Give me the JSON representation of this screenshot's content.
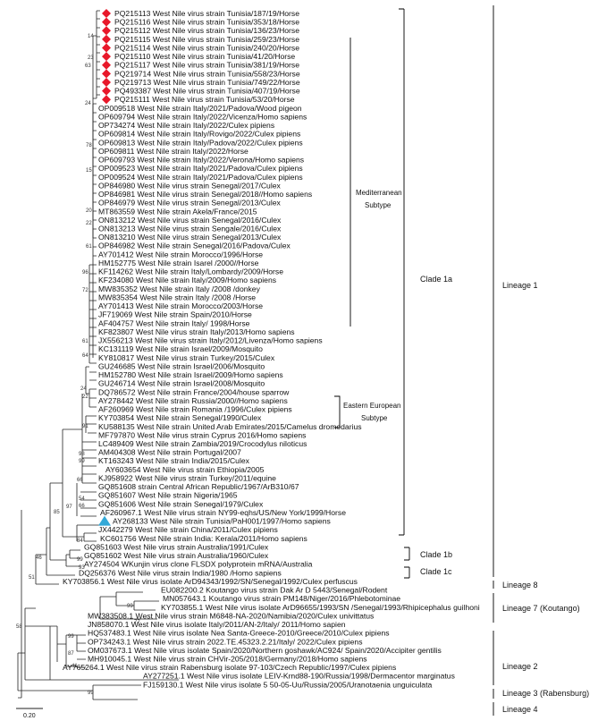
{
  "leaves": [
    {
      "label": "PQ215113 West Nile virus strain Tunisia/187/19/Horse",
      "marker": "diamond"
    },
    {
      "label": "PQ215116 West Nile virus strain Tunisia/353/18/Horse",
      "marker": "diamond"
    },
    {
      "label": "PQ215112 West Nile virus strain Tunisia/136/23/Horse",
      "marker": "diamond"
    },
    {
      "label": "PQ215115 West Nile virus strain Tunisia/259/23/Horse",
      "marker": "diamond"
    },
    {
      "label": "PQ215114 West Nile virus strain Tunisia/240/20/Horse",
      "marker": "diamond"
    },
    {
      "label": "PQ215110 West Nile virus strain Tunisia/41/20/Horse",
      "marker": "diamond"
    },
    {
      "label": "PQ215117 West Nile virus strain Tunisia/381/19/Horse",
      "marker": "diamond"
    },
    {
      "label": "PQ219714 West Nile virus strain Tunisia/558/23/Horse",
      "marker": "diamond"
    },
    {
      "label": "PQ219713 West Nile virus strain Tunisia/749/22/Horse",
      "marker": "diamond"
    },
    {
      "label": "PQ493387 West Nile virus strain Tunisia/407/19/Horse",
      "marker": "diamond"
    },
    {
      "label": "PQ215111 West Nile virus strain Tunisia/53/20/Horse",
      "marker": "diamond"
    },
    {
      "label": "OP009518 West Nile strain Italy/2021/Padova/Wood pigeon"
    },
    {
      "label": "OP609794 West Nile strain Italy/2022/Vicenza/Homo sapiens"
    },
    {
      "label": "OP734274 West Nile strain Italy/2022/Culex pipiens"
    },
    {
      "label": "OP609814 West Nile strain Italy/Rovigo/2022/Culex pipiens"
    },
    {
      "label": "OP609813 West Nile strain Italy/Padova/2022/Culex pipiens"
    },
    {
      "label": "OP609811 West Nile strain Italy/2022/Horse"
    },
    {
      "label": "OP609793 West Nile strain Italy/2022/Verona/Homo sapiens"
    },
    {
      "label": "OP009523 West Nile strain Italy/2021/Padova/Culex pipiens"
    },
    {
      "label": "OP009524 West Nile strain Italy/2021/Padova/Culex pipiens"
    },
    {
      "label": "OP846980 West Nile virus strain Senegal/2017/Culex"
    },
    {
      "label": "OP846981 West Nile virus strain Senegal/2018//Homo sapiens"
    },
    {
      "label": "OP846979 West Nile virus strain Senegal/2013/Culex"
    },
    {
      "label": "MT863559 West Nile strain Akela/France/2015"
    },
    {
      "label": "ON813212 West Nile virus strain Senegal/2016/Culex"
    },
    {
      "label": "ON813213 West Nile virus strain Sengale/2016/Culex"
    },
    {
      "label": "ON813210 West Nile virus strain Senegal/2013/Culex"
    },
    {
      "label": "OP846982 West Nile strain Senegal/2016/Padova/Culex"
    },
    {
      "label": "AY701412 West Nile strain Morocco/1996/Horse"
    },
    {
      "label": "HM152775 West Nile strain Isarel /2000//Horse"
    },
    {
      "label": "KF114262 West Nile strain Italy/Lombardy/2009/Horse"
    },
    {
      "label": "KF234080 West Nile strain Italy/2009/Homo sapiens"
    },
    {
      "label": "MW835352 West Nile strain Italy /2008 /donkey"
    },
    {
      "label": "MW835354 West Nile strain Italy /2008 /Horse"
    },
    {
      "label": "AY701413 West Nile strain Morocco/2003/Horse"
    },
    {
      "label": "JF719069 West Nile strain Spain/2010/Horse"
    },
    {
      "label": "AF404757 West Nile strain Italy/ 1998/Horse"
    },
    {
      "label": "KF823807 West Nile virus strain Italy/2013/Homo sapiens"
    },
    {
      "label": "JX556213 West Nile virus strain Italy/2012/Livenza/Homo sapiens"
    },
    {
      "label": "KC131119 West Nile strain Israel/2009/Mosquito"
    },
    {
      "label": "KY810817 West Nile virus strain Turkey/2015/Culex"
    },
    {
      "label": "GU246685 West Nile strain Israel/2006/Mosquito"
    },
    {
      "label": "HM152780 West Nile strain Israel/2009/Homo sapiens"
    },
    {
      "label": "GU246714 West Nile strain Israel/2008/Mosquito"
    },
    {
      "label": "DQ786572 West Nile strain France/2004/house sparrow"
    },
    {
      "label": "AY278442 West Nile strain Russia/2000//Homo sapiens"
    },
    {
      "label": "AF260969 West Nile strain Romania /1996/Culex pipiens"
    },
    {
      "label": "KY703854 West Nile strain Senegal/1990/Culex"
    },
    {
      "label": "KU588135 West Nile strain United Arab Emirates/2015/Camelus dromedarius"
    },
    {
      "label": "MF797870 West Nile virus strain Cyprus 2016/Homo sapiens"
    },
    {
      "label": "LC489409 West Nile strain Zambia/2019/Crocodylus niloticus"
    },
    {
      "label": "AM404308 West Nile strain Portugal/2007"
    },
    {
      "label": "KT163243 West Nile strain India/2015/Culex"
    },
    {
      "label": "AY603654 West Nile virus strain Ethiopia/2005"
    },
    {
      "label": "KJ958922 West Nile virus strain Turkey/2011/equine"
    },
    {
      "label": "GQ851608 strain Central African Republic/1967/ArB310/67"
    },
    {
      "label": "GQ851607 West Nile strain Nigeria/1965"
    },
    {
      "label": "GQ851606 West Nile strain Senegal/1979/Culex"
    },
    {
      "label": "AF260967.1 West Nile virus strain NY99-eqhs/US/New York/1999/Horse"
    },
    {
      "label": "AY268133 West Nile strain Tunisia/PaH001/1997/Homo sapiens",
      "marker": "triangle"
    },
    {
      "label": "JX442279 West Nile strain China/2011/Culex pipiens"
    },
    {
      "label": "KC601756 West Nile strain India: Kerala/2011/Homo sapiens"
    },
    {
      "label": "GQ851603 West Nile virus strain Australia/1991/Culex"
    },
    {
      "label": "GQ851602 West Nile virus strain Australia/1960/Culex"
    },
    {
      "label": "AY274504 WKunjin virus clone FLSDX polyprotein mRNA/Australia"
    },
    {
      "label": "DQ256376 West Nile virus strain India/1980 /Homo sapiens"
    },
    {
      "label": "KY703856.1 West Nile virus isolate ArD94343/1992/SN/Senegal/1992/Culex perfuscus"
    },
    {
      "label": "EU082200.2 Koutango virus strain Dak Ar D 5443/Senegal/Rodent"
    },
    {
      "label": "MN057643.1 Koutango virus strain PM148/Niger/2016/Phlebotominae"
    },
    {
      "label": "KY703855.1 West Nile virus isolate ArD96655/1993/SN /Senegal/1993/Rhipicephalus guilhoni"
    },
    {
      "label": "MW383508.1 West Nile virus strain M6848-NA-2020/Namibia/2020/Culex univittatus"
    },
    {
      "label": "JN858070.1 West Nile virus isolate Italy/2011/AN-2/Italy/ 2011/Homo sapien"
    },
    {
      "label": "HQ537483.1 West Nile virus isolate Nea Santa-Greece-2010/Greece/2010/Culex pipiens"
    },
    {
      "label": "OP734243.1 West Nile virus strain 2022.TE.45323.2.21/Italy/ 2022/Culex pipiens"
    },
    {
      "label": "OM037673.1 West Nile virus isolate Spain/2020/Northern goshawk/AC924/ Spain/2020/Accipiter gentilis"
    },
    {
      "label": "MH910045.1 West Nile virus strain CHVir-205/2018/Germany/2018/Homo sapiens"
    },
    {
      "label": "AY765264.1 West Nile virus strain Rabensburg isolate 97-103/Czech Republic/1997/Culex pipiens"
    },
    {
      "label": "AY277251.1 West Nile virus isolate LEIV-Krnd88-190/Russia/1998/Dermacentor marginatus"
    },
    {
      "label": "FJ159130.1 West Nile virus isolate 5 50-05-Uu/Russia/2005/Uranotaenia unguiculata"
    }
  ],
  "bootstrap": [
    {
      "value": "14"
    },
    {
      "value": "23"
    },
    {
      "value": "63"
    },
    {
      "value": "24"
    },
    {
      "value": "78"
    },
    {
      "value": "15"
    },
    {
      "value": "20"
    },
    {
      "value": "22"
    },
    {
      "value": "61"
    },
    {
      "value": "96"
    },
    {
      "value": "72"
    },
    {
      "value": "61"
    },
    {
      "value": "64"
    },
    {
      "value": "24"
    },
    {
      "value": "22"
    },
    {
      "value": "91"
    },
    {
      "value": "98"
    },
    {
      "value": "99"
    },
    {
      "value": "66"
    },
    {
      "value": "54"
    },
    {
      "value": "66"
    },
    {
      "value": "97"
    },
    {
      "value": "84"
    },
    {
      "value": "85"
    },
    {
      "value": "99"
    },
    {
      "value": "93"
    },
    {
      "value": "46"
    },
    {
      "value": "51"
    },
    {
      "value": "99"
    },
    {
      "value": "77"
    },
    {
      "value": "58"
    },
    {
      "value": "99"
    },
    {
      "value": "87"
    },
    {
      "value": "41"
    },
    {
      "value": "99"
    }
  ],
  "subtypes": [
    {
      "line1": "Mediterranean",
      "line2": "Subtype"
    },
    {
      "line1": "Eastern European",
      "line2": "Subtype"
    }
  ],
  "clades": [
    "Clade 1a",
    "Clade 1b",
    "Clade 1c"
  ],
  "lineages": [
    "Lineage 1",
    "Lineage 8",
    "Lineage 7 (Koutango)",
    "Lineage 2",
    "Lineage 3 (Rabensburg)",
    "Lineage 4"
  ],
  "scale_label": "0.20",
  "colors": {
    "diamond": "#e8182a",
    "triangle": "#33a9d8"
  }
}
